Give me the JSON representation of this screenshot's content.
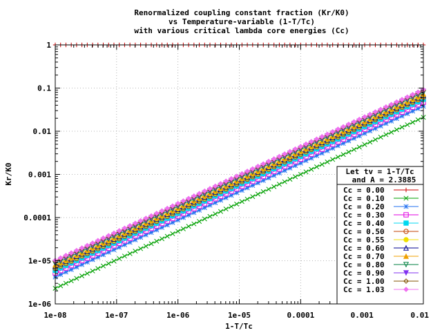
{
  "chart_data": {
    "type": "line",
    "title": [
      "Renormalized coupling constant fraction (Kr/K0)",
      "vs Temperature-variable (1-T/Tc)",
      "with various critical lambda core energies (Cc)"
    ],
    "xlabel": "1-T/Tc",
    "ylabel": "Kr/K0",
    "xscale": "log",
    "yscale": "log",
    "xlim": [
      1e-08,
      0.01
    ],
    "ylim": [
      1e-06,
      1
    ],
    "grid": true,
    "x_tick_labels": [
      "1e-08",
      "1e-07",
      "1e-06",
      "1e-05",
      "0.0001",
      "0.001",
      "0.01"
    ],
    "y_tick_labels": [
      "1e-06",
      "1e-05",
      "0.0001",
      "0.001",
      "0.01",
      "0.1",
      "1"
    ],
    "x_ticks": [
      1e-08,
      1e-07,
      1e-06,
      1e-05,
      0.0001,
      0.001,
      0.01
    ],
    "y_ticks": [
      1e-06,
      1e-05,
      0.0001,
      0.001,
      0.01,
      0.1,
      1
    ],
    "legend_title": [
      "Let tv = 1-T/Tc",
      "and A = 2.3885"
    ],
    "legend_position": "bottom-right",
    "series": [
      {
        "name": "Cc = 0.00",
        "color": "#cc0000",
        "marker": "plus",
        "y_start": 1,
        "y_end": 1
      },
      {
        "name": "Cc = 0.10",
        "color": "#00a000",
        "marker": "cross",
        "y_start": 2.3e-06,
        "y_end": 0.021
      },
      {
        "name": "Cc = 0.20",
        "color": "#2070f0",
        "marker": "star",
        "y_start": 4.2e-06,
        "y_end": 0.038
      },
      {
        "name": "Cc = 0.30",
        "color": "#e000e0",
        "marker": "square",
        "y_start": 5.2e-06,
        "y_end": 0.047
      },
      {
        "name": "Cc = 0.40",
        "color": "#00d8f0",
        "marker": "fsquare",
        "y_start": 6e-06,
        "y_end": 0.055
      },
      {
        "name": "Cc = 0.50",
        "color": "#c04000",
        "marker": "circle",
        "y_start": 6.6e-06,
        "y_end": 0.061
      },
      {
        "name": "Cc = 0.55",
        "color": "#f0e000",
        "marker": "fcircle",
        "y_start": 7e-06,
        "y_end": 0.064
      },
      {
        "name": "Cc = 0.60",
        "color": "#000090",
        "marker": "triangle",
        "y_start": 7.4e-06,
        "y_end": 0.067
      },
      {
        "name": "Cc = 0.70",
        "color": "#f0a000",
        "marker": "ftriangle",
        "y_start": 8e-06,
        "y_end": 0.073
      },
      {
        "name": "Cc = 0.80",
        "color": "#008040",
        "marker": "itriangle",
        "y_start": 8.6e-06,
        "y_end": 0.079
      },
      {
        "name": "Cc = 0.90",
        "color": "#8030f0",
        "marker": "fitriangle",
        "y_start": 9.2e-06,
        "y_end": 0.084
      },
      {
        "name": "Cc = 1.00",
        "color": "#805000",
        "marker": "diamond",
        "y_start": 9.8e-06,
        "y_end": 0.089
      },
      {
        "name": "Cc = 1.03",
        "color": "#f070f0",
        "marker": "fdiamond",
        "y_start": 1.02e-05,
        "y_end": 0.092
      }
    ]
  }
}
